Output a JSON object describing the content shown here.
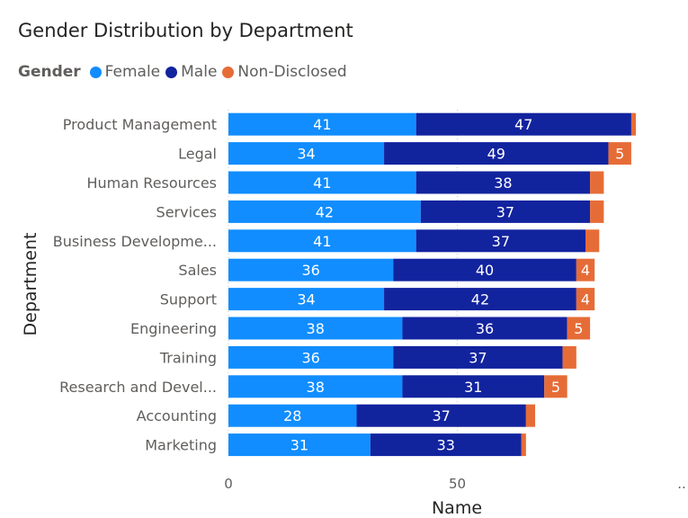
{
  "chart_data": {
    "type": "bar",
    "orientation": "horizontal",
    "stacked": true,
    "title": "Gender Distribution by Department",
    "xlabel": "Name",
    "ylabel": "Department",
    "xlim": [
      0,
      95
    ],
    "x_ticks": [
      "0",
      "50"
    ],
    "x_more_indicator": "..",
    "legend": {
      "title": "Gender",
      "position": "top-left"
    },
    "grid": true,
    "categories": [
      "Product Management",
      "Legal",
      "Human Resources",
      "Services",
      "Business Developme...",
      "Sales",
      "Support",
      "Engineering",
      "Training",
      "Research and Devel...",
      "Accounting",
      "Marketing"
    ],
    "series": [
      {
        "name": "Female",
        "color": "#118dff",
        "values": [
          41,
          34,
          41,
          42,
          41,
          36,
          34,
          38,
          36,
          38,
          28,
          31
        ]
      },
      {
        "name": "Male",
        "color": "#12239e",
        "values": [
          47,
          49,
          38,
          37,
          37,
          40,
          42,
          36,
          37,
          31,
          37,
          33
        ]
      },
      {
        "name": "Non-Disclosed",
        "color": "#e66c37",
        "values": [
          1,
          5,
          3,
          3,
          3,
          4,
          4,
          5,
          3,
          5,
          2,
          1
        ]
      }
    ],
    "show_label_min": 4
  }
}
